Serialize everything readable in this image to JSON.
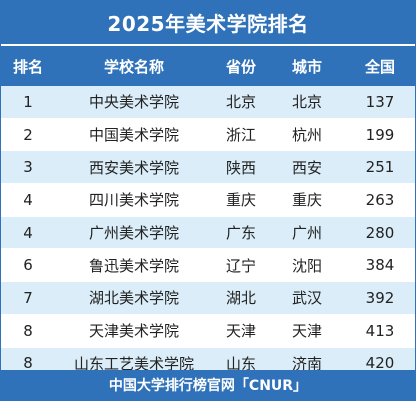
{
  "title": "2025年美术学院排名",
  "header": {
    "rank": "排名",
    "school": "学校名称",
    "province": "省份",
    "city": "城市",
    "score": "全国"
  },
  "rows": [
    {
      "rank": "1",
      "school": "中央美术学院",
      "province": "北京",
      "city": "北京",
      "score": "137"
    },
    {
      "rank": "2",
      "school": "中国美术学院",
      "province": "浙江",
      "city": "杭州",
      "score": "199"
    },
    {
      "rank": "3",
      "school": "西安美术学院",
      "province": "陕西",
      "city": "西安",
      "score": "251"
    },
    {
      "rank": "4",
      "school": "四川美术学院",
      "province": "重庆",
      "city": "重庆",
      "score": "263"
    },
    {
      "rank": "4",
      "school": "广州美术学院",
      "province": "广东",
      "city": "广州",
      "score": "280"
    },
    {
      "rank": "6",
      "school": "鲁迅美术学院",
      "province": "辽宁",
      "city": "沈阳",
      "score": "384"
    },
    {
      "rank": "7",
      "school": "湖北美术学院",
      "province": "湖北",
      "city": "武汉",
      "score": "392"
    },
    {
      "rank": "8",
      "school": "天津美术学院",
      "province": "天津",
      "city": "天津",
      "score": "413"
    },
    {
      "rank": "8",
      "school": "山东工艺美术学院",
      "province": "山东",
      "city": "济南",
      "score": "420"
    }
  ],
  "footer": "中国大学排行榜官网「CNUR」",
  "colors": {
    "primary": "#2f72b9",
    "stripe": "#daedf8"
  }
}
